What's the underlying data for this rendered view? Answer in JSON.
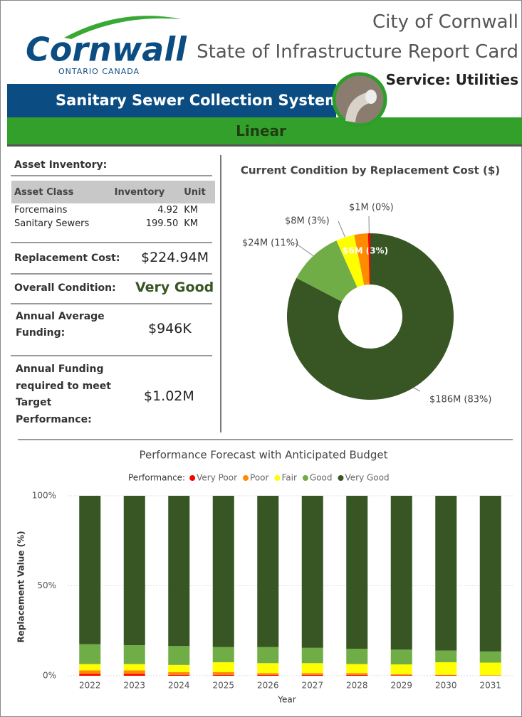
{
  "header": {
    "logo": "Cornwall",
    "logo_sub": "ONTARIO CANADA",
    "city": "City of Cornwall",
    "report": "State of Infrastructure Report Card",
    "service": "Service: Utilities"
  },
  "banner": {
    "system": "Sanitary Sewer Collection System",
    "category": "Linear"
  },
  "inventory": {
    "title": "Asset Inventory:",
    "columns": [
      "Asset Class",
      "Inventory",
      "Unit"
    ],
    "rows": [
      [
        "Forcemains",
        "4.92",
        "KM"
      ],
      [
        "Sanitary Sewers",
        "199.50",
        "KM"
      ]
    ]
  },
  "metrics": [
    {
      "label": "Replacement Cost:",
      "value": "$224.94M"
    },
    {
      "label": "Overall Condition:",
      "value": "Very Good"
    },
    {
      "label": "Annual Average Funding:",
      "value": "$946K"
    },
    {
      "label": "Annual Funding required to meet Target Performance:",
      "value": "$1.02M"
    }
  ],
  "chart_data": [
    {
      "type": "donut",
      "title": "Current Condition by Replacement Cost ($)",
      "categories": [
        "Very Good",
        "Good",
        "Fair",
        "Poor",
        "Very Poor"
      ],
      "values": [
        186,
        24,
        8,
        6,
        1
      ],
      "value_labels": [
        "$186M (83%)",
        "$24M (11%)",
        "$8M (3%)",
        "$6M (3%)",
        "$1M (0%)"
      ],
      "colors": [
        "#375623",
        "#70ad47",
        "#ffff00",
        "#ff8c00",
        "#ff0000"
      ]
    },
    {
      "type": "bar",
      "title": "Performance Forecast with Anticipated Budget",
      "legend_title": "Performance:",
      "x_label": "Year",
      "y_label": "Replacement Value (%)",
      "categories": [
        "2022",
        "2023",
        "2024",
        "2025",
        "2026",
        "2027",
        "2028",
        "2029",
        "2030",
        "2031"
      ],
      "series": [
        {
          "name": "Very Poor",
          "color": "#ff0000",
          "values": [
            1,
            1,
            0.5,
            0.5,
            0.5,
            0.5,
            0.5,
            0.3,
            0.2,
            0.1
          ]
        },
        {
          "name": "Poor",
          "color": "#ff8c00",
          "values": [
            2,
            2,
            1.5,
            1.5,
            1,
            1,
            1,
            0.5,
            0.3,
            0.2
          ]
        },
        {
          "name": "Fair",
          "color": "#ffff00",
          "values": [
            3.5,
            3.5,
            4,
            5.5,
            5.5,
            5.5,
            5,
            5.5,
            7,
            7
          ]
        },
        {
          "name": "Good",
          "color": "#70ad47",
          "values": [
            11,
            10.5,
            10.5,
            8.5,
            9,
            8.5,
            8.5,
            8.2,
            6.5,
            6.2
          ]
        },
        {
          "name": "Very Good",
          "color": "#375623",
          "values": [
            82.5,
            83,
            83.5,
            84,
            84,
            84.5,
            85,
            85.5,
            86,
            86.5
          ]
        }
      ],
      "ylim": [
        0,
        100
      ],
      "yticks": [
        {
          "value": 0,
          "label": "0%"
        },
        {
          "value": 50,
          "label": "50%"
        },
        {
          "value": 100,
          "label": "100%"
        }
      ],
      "grid": true,
      "stacked": true
    }
  ]
}
